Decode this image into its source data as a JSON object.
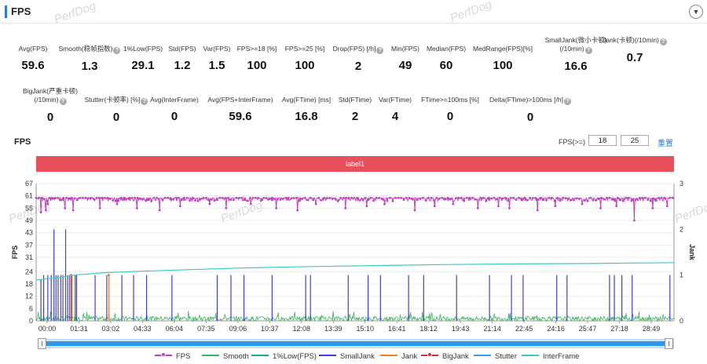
{
  "header": {
    "title": "FPS",
    "collapse_icon": "chevron-down-icon"
  },
  "watermark": "PerfDog",
  "metrics_row1": [
    {
      "label": "Avg(FPS)",
      "value": "59.6",
      "help": false
    },
    {
      "label": "Smooth(稳帧指数)",
      "value": "1.3",
      "help": true
    },
    {
      "label": "1%Low(FPS)",
      "value": "29.1",
      "help": false
    },
    {
      "label": "Std(FPS)",
      "value": "1.2",
      "help": false
    },
    {
      "label": "Var(FPS)",
      "value": "1.5",
      "help": false
    },
    {
      "label": "FPS>=18 [%]",
      "value": "100",
      "help": false
    },
    {
      "label": "FPS>=25 [%]",
      "value": "100",
      "help": false
    },
    {
      "label": "Drop(FPS) [/h]",
      "value": "2",
      "help": true
    },
    {
      "label": "Min(FPS)",
      "value": "49",
      "help": false
    },
    {
      "label": "Median(FPS)",
      "value": "60",
      "help": false
    },
    {
      "label": "MedRange(FPS)[%]",
      "value": "100",
      "help": false
    },
    {
      "label": "SmallJank(微小卡顿)(/10min)",
      "value": "16.6",
      "help": true
    },
    {
      "label": "Jank(卡顿)(/10min)",
      "value": "0.7",
      "help": true
    }
  ],
  "metrics_row2": [
    {
      "label": "BigJank(严重卡顿)(/10min)",
      "value": "0",
      "help": true
    },
    {
      "label": "Stutter(卡顿率) [%]",
      "value": "0",
      "help": true
    },
    {
      "label": "Avg(InterFrame)",
      "value": "0",
      "help": false
    },
    {
      "label": "Avg(FPS+InterFrame)",
      "value": "59.6",
      "help": false
    },
    {
      "label": "Avg(FTime) [ms]",
      "value": "16.8",
      "help": false
    },
    {
      "label": "Std(FTime)",
      "value": "2",
      "help": false
    },
    {
      "label": "Var(FTime)",
      "value": "4",
      "help": false
    },
    {
      "label": "FTime>=100ms [%]",
      "value": "0",
      "help": false
    },
    {
      "label": "Delta(FTime)>100ms [/h]",
      "value": "0",
      "help": true
    }
  ],
  "chart_section": {
    "title": "FPS",
    "threshold_label": "FPS(>=)",
    "threshold_1": "18",
    "threshold_2": "25",
    "reset_label": "重置",
    "label_bar": "label1"
  },
  "chart_data": {
    "type": "line",
    "y_axis_left": {
      "label": "FPS",
      "range": [
        0,
        67
      ],
      "ticks": [
        0,
        6,
        12,
        18,
        24,
        31,
        37,
        43,
        49,
        55,
        61,
        67
      ]
    },
    "y_axis_right": {
      "label": "Jank",
      "range": [
        0,
        3
      ],
      "ticks": [
        0,
        1,
        2,
        3
      ]
    },
    "x_axis": {
      "range_seconds": [
        0,
        1860
      ],
      "ticks": [
        "00:00",
        "01:31",
        "03:02",
        "04:33",
        "06:04",
        "07:35",
        "09:06",
        "10:37",
        "12:08",
        "13:39",
        "15:10",
        "16:41",
        "18:12",
        "19:43",
        "21:14",
        "22:45",
        "24:16",
        "25:47",
        "27:18",
        "28:49"
      ]
    },
    "series": [
      {
        "name": "FPS",
        "color": "#c040c0",
        "axis": "left",
        "typical": 60,
        "min": 49,
        "dips": [
          [
            14,
            53
          ],
          [
            28,
            54
          ],
          [
            33,
            57
          ],
          [
            84,
            55
          ],
          [
            108,
            54
          ],
          [
            186,
            55
          ],
          [
            236,
            57
          ],
          [
            294,
            55
          ],
          [
            360,
            54
          ],
          [
            420,
            56
          ],
          [
            505,
            57
          ],
          [
            553,
            55
          ],
          [
            625,
            57
          ],
          [
            700,
            55
          ],
          [
            761,
            54
          ],
          [
            815,
            57
          ],
          [
            902,
            55
          ],
          [
            964,
            56
          ],
          [
            1016,
            57
          ],
          [
            1104,
            54
          ],
          [
            1162,
            56
          ],
          [
            1216,
            57
          ],
          [
            1288,
            55
          ],
          [
            1348,
            56
          ],
          [
            1380,
            55
          ],
          [
            1462,
            54
          ],
          [
            1514,
            56
          ],
          [
            1592,
            57
          ],
          [
            1646,
            55
          ],
          [
            1692,
            56
          ],
          [
            1744,
            49
          ],
          [
            1798,
            55
          ],
          [
            1840,
            56
          ]
        ]
      },
      {
        "name": "Smooth",
        "color": "#3cb45a",
        "axis": "left",
        "description_level": "low 0-5"
      },
      {
        "name": "1%Low(FPS)",
        "color": "#1aaa8a",
        "axis": "left",
        "note": "hidden-under-interframe"
      },
      {
        "name": "SmallJank",
        "color": "#3f3fd8",
        "axis": "right",
        "events": [
          [
            14,
            0.9
          ],
          [
            22,
            1.0
          ],
          [
            34,
            1.0
          ],
          [
            44,
            1.0
          ],
          [
            52,
            2.0
          ],
          [
            58,
            1.0
          ],
          [
            64,
            1.0
          ],
          [
            72,
            1.0
          ],
          [
            78,
            1.0
          ],
          [
            86,
            2.0
          ],
          [
            92,
            1.0
          ],
          [
            98,
            1.0
          ],
          [
            104,
            1.0
          ],
          [
            114,
            1.0
          ],
          [
            118,
            1.0
          ],
          [
            172,
            1.0
          ],
          [
            206,
            1.0
          ],
          [
            250,
            1.0
          ],
          [
            284,
            1.0
          ],
          [
            322,
            1.0
          ],
          [
            396,
            1.0
          ],
          [
            528,
            1.0
          ],
          [
            568,
            1.0
          ],
          [
            606,
            1.0
          ],
          [
            688,
            1.0
          ],
          [
            786,
            1.0
          ],
          [
            800,
            1.0
          ],
          [
            910,
            1.0
          ],
          [
            968,
            1.0
          ],
          [
            1004,
            1.0
          ],
          [
            1086,
            1.0
          ],
          [
            1130,
            1.0
          ],
          [
            1226,
            1.0
          ],
          [
            1322,
            1.0
          ],
          [
            1386,
            1.0
          ],
          [
            1420,
            1.0
          ],
          [
            1518,
            1.0
          ],
          [
            1548,
            1.0
          ],
          [
            1672,
            1.0
          ],
          [
            1686,
            1.0
          ],
          [
            1708,
            1.0
          ],
          [
            1738,
            1.0
          ],
          [
            1848,
            1.0
          ]
        ]
      },
      {
        "name": "Jank",
        "color": "#f08020",
        "axis": "right",
        "events": [
          [
            102,
            1.0
          ],
          [
            212,
            1.0
          ]
        ]
      },
      {
        "name": "BigJank",
        "color": "#d03030",
        "axis": "right",
        "events": []
      },
      {
        "name": "Stutter",
        "color": "#3a9be8",
        "axis": "right",
        "events": []
      },
      {
        "name": "InterFrame",
        "color": "#40c8c0",
        "axis": "left",
        "curve": [
          [
            0,
            20
          ],
          [
            60,
            21
          ],
          [
            120,
            22.5
          ],
          [
            200,
            23.5
          ],
          [
            300,
            24.2
          ],
          [
            450,
            25
          ],
          [
            600,
            25.8
          ],
          [
            800,
            26.5
          ],
          [
            1000,
            27
          ],
          [
            1200,
            27.5
          ],
          [
            1400,
            27.8
          ],
          [
            1600,
            28
          ],
          [
            1860,
            28.4
          ]
        ]
      }
    ],
    "legend": [
      "FPS",
      "Smooth",
      "1%Low(FPS)",
      "SmallJank",
      "Jank",
      "BigJank",
      "Stutter",
      "InterFrame"
    ],
    "legend_position": "bottom",
    "grid": "horizontal"
  }
}
